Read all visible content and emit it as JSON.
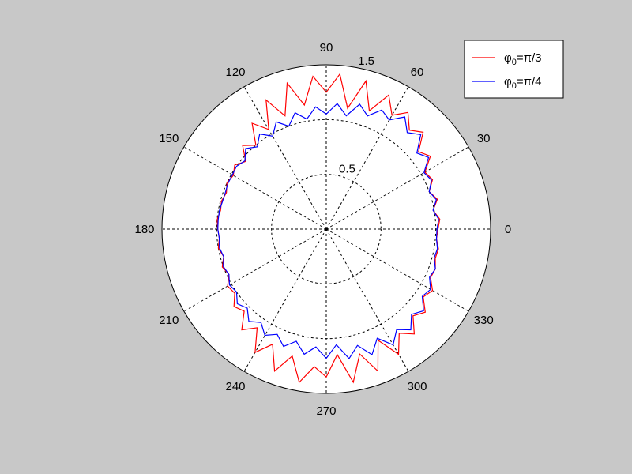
{
  "chart_data": {
    "type": "line",
    "coordinate_system": "polar",
    "title": "",
    "theta_unit": "degrees",
    "r_max": 1.5,
    "r_ticks": [
      {
        "value": 0.5,
        "label": "0.5"
      },
      {
        "value": 1.0,
        "label": ""
      },
      {
        "value": 1.5,
        "label": "1.5"
      }
    ],
    "theta_ticks": [
      {
        "deg": 0,
        "label": "0"
      },
      {
        "deg": 30,
        "label": "30"
      },
      {
        "deg": 60,
        "label": "60"
      },
      {
        "deg": 90,
        "label": "90"
      },
      {
        "deg": 120,
        "label": "120"
      },
      {
        "deg": 150,
        "label": "150"
      },
      {
        "deg": 180,
        "label": "180"
      },
      {
        "deg": 210,
        "label": "210"
      },
      {
        "deg": 240,
        "label": "240"
      },
      {
        "deg": 270,
        "label": "270"
      },
      {
        "deg": 300,
        "label": "300"
      },
      {
        "deg": 330,
        "label": "330"
      }
    ],
    "grid": true,
    "legend": {
      "position": "top-right"
    },
    "series": [
      {
        "name_base": "φ",
        "name_sub": "0",
        "name_rest": "=π/3",
        "color": "#ff0000",
        "theta": [
          0,
          5,
          10,
          15,
          20,
          25,
          30,
          35,
          40,
          45,
          50,
          55,
          60,
          65,
          70,
          75,
          80,
          85,
          90,
          95,
          100,
          105,
          110,
          115,
          120,
          125,
          130,
          135,
          140,
          145,
          150,
          155,
          160,
          165,
          170,
          175,
          180,
          185,
          190,
          195,
          200,
          205,
          210,
          215,
          220,
          225,
          230,
          235,
          240,
          245,
          250,
          255,
          260,
          265,
          270,
          275,
          280,
          285,
          290,
          295,
          300,
          305,
          310,
          315,
          320,
          325,
          330,
          335,
          340,
          345,
          350,
          355,
          360
        ],
        "r": [
          1.02,
          1.04,
          0.99,
          1.05,
          1.0,
          1.07,
          1.04,
          1.16,
          1.1,
          1.25,
          1.18,
          1.3,
          1.2,
          1.35,
          1.15,
          1.4,
          1.12,
          1.42,
          1.25,
          1.4,
          1.15,
          1.38,
          1.1,
          1.3,
          1.05,
          1.18,
          1.0,
          1.08,
          0.96,
          1.02,
          0.98,
          1.0,
          0.97,
          0.99,
          0.98,
          1.0,
          0.99,
          0.98,
          1.0,
          0.97,
          1.01,
          0.98,
          1.04,
          1.02,
          1.1,
          1.06,
          1.2,
          1.1,
          1.3,
          1.16,
          1.38,
          1.2,
          1.42,
          1.26,
          1.35,
          1.15,
          1.42,
          1.18,
          1.38,
          1.12,
          1.32,
          1.16,
          1.25,
          1.12,
          1.18,
          1.08,
          1.12,
          1.05,
          1.06,
          1.03,
          1.04,
          1.01,
          1.02
        ]
      },
      {
        "name_base": "φ",
        "name_sub": "0",
        "name_rest": "=π/4",
        "color": "#0000ff",
        "theta": [
          0,
          5,
          10,
          15,
          20,
          25,
          30,
          35,
          40,
          45,
          50,
          55,
          60,
          65,
          70,
          75,
          80,
          85,
          90,
          95,
          100,
          105,
          110,
          115,
          120,
          125,
          130,
          135,
          140,
          145,
          150,
          155,
          160,
          165,
          170,
          175,
          180,
          185,
          190,
          195,
          200,
          205,
          210,
          215,
          220,
          225,
          230,
          235,
          240,
          245,
          250,
          255,
          260,
          265,
          270,
          275,
          280,
          285,
          290,
          295,
          300,
          305,
          310,
          315,
          320,
          325,
          330,
          335,
          340,
          345,
          350,
          355,
          360
        ],
        "r": [
          1.01,
          1.03,
          0.99,
          1.04,
          1.0,
          1.06,
          1.03,
          1.14,
          1.08,
          1.22,
          1.15,
          1.25,
          1.15,
          1.2,
          1.1,
          1.18,
          1.05,
          1.15,
          1.05,
          1.12,
          1.02,
          1.1,
          1.0,
          1.08,
          0.98,
          1.06,
          0.98,
          1.04,
          0.97,
          1.0,
          0.99,
          0.99,
          0.98,
          0.98,
          0.99,
          0.99,
          0.99,
          0.98,
          0.99,
          0.97,
          1.0,
          0.98,
          1.02,
          1.0,
          1.06,
          1.02,
          1.1,
          1.04,
          1.12,
          1.06,
          1.14,
          1.06,
          1.16,
          1.08,
          1.18,
          1.06,
          1.2,
          1.1,
          1.22,
          1.1,
          1.22,
          1.12,
          1.2,
          1.1,
          1.16,
          1.07,
          1.1,
          1.04,
          1.06,
          1.02,
          1.03,
          1.01,
          1.01
        ]
      }
    ]
  }
}
